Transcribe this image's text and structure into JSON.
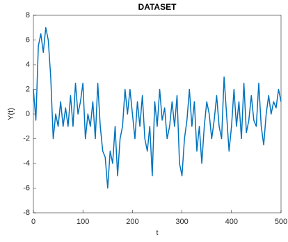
{
  "chart_data": {
    "type": "line",
    "title": "DATASET",
    "x_label": "t",
    "y_label": "Y(t)",
    "x": [
      0,
      5,
      10,
      15,
      20,
      25,
      30,
      35,
      40,
      45,
      50,
      55,
      60,
      65,
      70,
      75,
      80,
      85,
      90,
      95,
      100,
      105,
      110,
      115,
      120,
      125,
      130,
      135,
      140,
      145,
      150,
      155,
      160,
      165,
      170,
      175,
      180,
      185,
      190,
      195,
      200,
      205,
      210,
      215,
      220,
      225,
      230,
      235,
      240,
      245,
      250,
      255,
      260,
      265,
      270,
      275,
      280,
      285,
      290,
      295,
      300,
      305,
      310,
      315,
      320,
      325,
      330,
      335,
      340,
      345,
      350,
      355,
      360,
      365,
      370,
      375,
      380,
      385,
      390,
      395,
      400,
      405,
      410,
      415,
      420,
      425,
      430,
      435,
      440,
      445,
      450,
      455,
      460,
      465,
      470,
      475,
      480,
      485,
      490,
      495,
      500
    ],
    "series": [
      {
        "name": "Y(t)",
        "color": "#0072bd",
        "values": [
          2,
          -0.5,
          5.5,
          6.5,
          5,
          7,
          6,
          3,
          -2,
          0,
          -1,
          1,
          -1,
          0.5,
          -1,
          1.5,
          -1,
          2.5,
          0,
          1,
          2.5,
          -2,
          0,
          -1,
          1,
          -2,
          2.5,
          -1,
          -3,
          -3.5,
          -6,
          -3,
          -4,
          -1,
          -5,
          -2,
          -1,
          2,
          0,
          2,
          0,
          -2,
          1,
          -1,
          1.5,
          -2,
          -3,
          -1,
          -5,
          1,
          -1,
          2,
          -0.5,
          0.5,
          -2,
          -1,
          1,
          -1,
          1.5,
          -4,
          -5,
          -2,
          -0.5,
          2,
          -1,
          1,
          -3,
          -1,
          -4,
          -1,
          1,
          0,
          -2,
          -0.5,
          1.5,
          -1,
          -2,
          3,
          0,
          -3,
          -1,
          2,
          -1,
          1,
          -2,
          2.5,
          -1.5,
          -0.5,
          1.5,
          -0.5,
          -1,
          2.5,
          -1,
          -2.5,
          0,
          1.5,
          0,
          1,
          0.5,
          2,
          1
        ]
      }
    ],
    "xlim": [
      0,
      500
    ],
    "xticks": [
      0,
      100,
      200,
      300,
      400,
      500
    ],
    "ylim": [
      -8,
      8
    ],
    "yticks": [
      -8,
      -6,
      -4,
      -2,
      0,
      2,
      4,
      6,
      8
    ],
    "grid": false
  }
}
